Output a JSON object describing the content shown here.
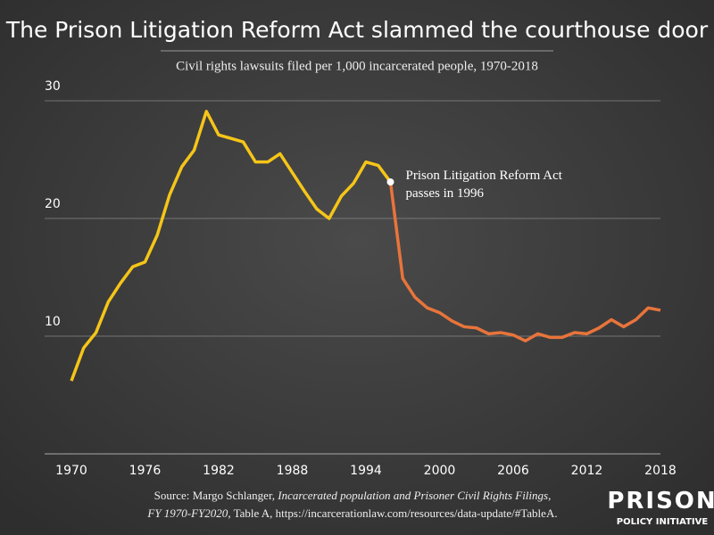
{
  "chart_data": {
    "type": "line",
    "title": "The Prison Litigation Reform Act slammed the courthouse door",
    "subtitle": "Civil rights lawsuits filed per 1,000 incarcerated people, 1970-2018",
    "x": [
      1970,
      1971,
      1972,
      1973,
      1974,
      1975,
      1976,
      1977,
      1978,
      1979,
      1980,
      1981,
      1982,
      1983,
      1984,
      1985,
      1986,
      1987,
      1988,
      1989,
      1990,
      1991,
      1992,
      1993,
      1994,
      1995,
      1996,
      1997,
      1998,
      1999,
      2000,
      2001,
      2002,
      2003,
      2004,
      2005,
      2006,
      2007,
      2008,
      2009,
      2010,
      2011,
      2012,
      2013,
      2014,
      2015,
      2016,
      2017,
      2018
    ],
    "series": [
      {
        "color": "#f5c518",
        "values": [
          6.2,
          9.0,
          10.3,
          12.9,
          14.5,
          15.9,
          16.3,
          18.6,
          22.0,
          24.4,
          25.8,
          29.1,
          27.1,
          26.8,
          26.5,
          24.8,
          24.8,
          25.5,
          23.9,
          22.3,
          20.8,
          20.0,
          21.9,
          23.0,
          24.8,
          24.5,
          23.1,
          null,
          null,
          null,
          null,
          null,
          null,
          null,
          null,
          null,
          null,
          null,
          null,
          null,
          null,
          null,
          null,
          null,
          null,
          null,
          null,
          null,
          null
        ]
      },
      {
        "color": "#e8743b",
        "values": [
          null,
          null,
          null,
          null,
          null,
          null,
          null,
          null,
          null,
          null,
          null,
          null,
          null,
          null,
          null,
          null,
          null,
          null,
          null,
          null,
          null,
          null,
          null,
          null,
          null,
          null,
          23.1,
          14.9,
          13.3,
          12.4,
          12.0,
          11.3,
          10.8,
          10.7,
          10.2,
          10.3,
          10.1,
          9.6,
          10.2,
          9.9,
          9.9,
          10.3,
          10.2,
          10.7,
          11.4,
          10.8,
          11.4,
          12.4,
          12.2
        ]
      }
    ],
    "xlim": [
      1970,
      2018
    ],
    "xticks": [
      1970,
      1976,
      1982,
      1988,
      1994,
      2000,
      2006,
      2012,
      2018
    ],
    "ylim": [
      0,
      30
    ],
    "yticks": [
      10,
      20,
      30
    ],
    "grid": true,
    "annotation": [
      "Prison Litigation Reform Act",
      "passes in 1996"
    ],
    "source": [
      [
        "Source: Margo Schlanger, ",
        "Incarcerated population and Prisoner Civil Rights Filings,"
      ],
      [
        "FY 1970-FY2020",
        ", Table A, https://incarcerationlaw.com/resources/data-update/#TableA."
      ]
    ],
    "logo": [
      "PRISON",
      "POLICY INITIATIVE"
    ]
  }
}
